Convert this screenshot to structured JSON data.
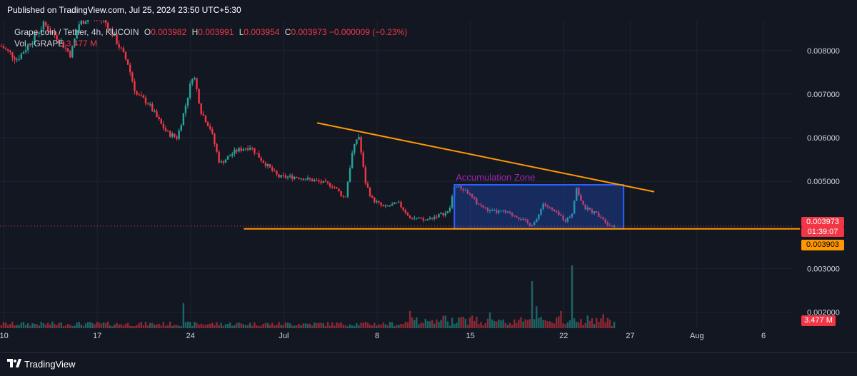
{
  "header": {
    "published": "Published on TradingView.com, Jul 25, 2024 23:50 UTC+5:30"
  },
  "legend": {
    "symbol": "Grape coin / Tether, 4h, KUCOIN",
    "open_label": "O",
    "open": "0.003982",
    "high_label": "H",
    "high": "0.003991",
    "low_label": "L",
    "low": "0.003954",
    "close_label": "C",
    "close": "0.003973",
    "change": "−0.000009 (−0.23%)",
    "vol_label": "Vol · GRAPE",
    "vol_value": "3.477 M"
  },
  "price_tags": {
    "last_price": "0.003973",
    "countdown": "01:39:07",
    "support_level": "0.003903",
    "volume": "3.477 M"
  },
  "footer": {
    "brand": "TradingView"
  },
  "colors": {
    "background": "#131722",
    "up": "#26a69a",
    "down": "#f23645",
    "trendline": "#ff9800",
    "box_fill": "#2962ff",
    "annotation_text": "#9c27b0"
  },
  "chart_data": {
    "type": "candlestick",
    "symbol": "Grape coin / Tether",
    "interval": "4h",
    "exchange": "KUCOIN",
    "ylim": [
      0.0015,
      0.0087
    ],
    "y_ticks": [
      "0.008000",
      "0.007000",
      "0.006000",
      "0.005000",
      "0.003000",
      "0.002000"
    ],
    "y_tick_values": [
      0.008,
      0.007,
      0.006,
      0.005,
      0.003,
      0.002
    ],
    "x_ticks": [
      "10",
      "17",
      "24",
      "Jul",
      "8",
      "15",
      "22",
      "27",
      "Aug",
      "6"
    ],
    "x_tick_days": [
      10,
      17,
      24,
      31,
      38,
      45,
      52,
      57,
      62,
      67
    ],
    "xlim_days": [
      9.7,
      69.3
    ],
    "close_path": [
      [
        9.8,
        0.0081
      ],
      [
        11,
        0.0078
      ],
      [
        12,
        0.0082
      ],
      [
        13,
        0.0086
      ],
      [
        14,
        0.0083
      ],
      [
        15,
        0.0079
      ],
      [
        15.6,
        0.0086
      ],
      [
        16.5,
        0.0088
      ],
      [
        17.5,
        0.0087
      ],
      [
        18.3,
        0.0083
      ],
      [
        19.3,
        0.0077
      ],
      [
        19.9,
        0.007
      ],
      [
        20.8,
        0.0068
      ],
      [
        21.8,
        0.0063
      ],
      [
        22.3,
        0.0061
      ],
      [
        23,
        0.006
      ],
      [
        23.6,
        0.0067
      ],
      [
        24.2,
        0.0075
      ],
      [
        24.8,
        0.0066
      ],
      [
        25.5,
        0.0062
      ],
      [
        26.2,
        0.0054
      ],
      [
        27.4,
        0.0057
      ],
      [
        28.5,
        0.0058
      ],
      [
        29.3,
        0.0055
      ],
      [
        30.6,
        0.0051
      ],
      [
        32,
        0.0051
      ],
      [
        33.5,
        0.005
      ],
      [
        34.7,
        0.0049
      ],
      [
        35.6,
        0.0046
      ],
      [
        36.1,
        0.0056
      ],
      [
        36.6,
        0.0061
      ],
      [
        37.1,
        0.005
      ],
      [
        37.6,
        0.0046
      ],
      [
        38.5,
        0.0044
      ],
      [
        39.6,
        0.0045
      ],
      [
        40.4,
        0.0042
      ],
      [
        41.5,
        0.0041
      ],
      [
        42.4,
        0.0042
      ],
      [
        43.4,
        0.0043
      ],
      [
        43.8,
        0.0049
      ],
      [
        44.6,
        0.0048
      ],
      [
        45.5,
        0.0045
      ],
      [
        46.5,
        0.0043
      ],
      [
        47.5,
        0.0043
      ],
      [
        48.5,
        0.0042
      ],
      [
        49.5,
        0.004
      ],
      [
        50,
        0.0041
      ],
      [
        50.4,
        0.0045
      ],
      [
        51.3,
        0.0043
      ],
      [
        52.2,
        0.0041
      ],
      [
        52.7,
        0.0043
      ],
      [
        52.9,
        0.0049
      ],
      [
        53.5,
        0.0044
      ],
      [
        54.2,
        0.0043
      ],
      [
        54.8,
        0.0042
      ],
      [
        55.4,
        0.004
      ],
      [
        55.8,
        0.003973
      ]
    ],
    "volume": {
      "unit": "M",
      "last": 3.477,
      "spikes": [
        [
          23.4,
          3.2
        ],
        [
          40.5,
          2.2
        ],
        [
          43.0,
          1.6
        ],
        [
          46.5,
          2.0
        ],
        [
          49.7,
          6.0
        ],
        [
          50.0,
          2.8
        ],
        [
          51.8,
          2.2
        ],
        [
          52.7,
          8.0
        ],
        [
          55.0,
          1.8
        ]
      ]
    },
    "annotations": {
      "accumulation_zone_label": "Accumulation Zone",
      "accumulation_zone": {
        "x_days": [
          43.8,
          56.5
        ],
        "y": [
          0.00391,
          0.00492
        ]
      },
      "descending_trendline": {
        "from": [
          33.5,
          0.00634
        ],
        "to": [
          58.8,
          0.00476
        ]
      },
      "support_line": {
        "from": [
          28.0,
          0.00391
        ],
        "to": [
          69.3,
          0.00391
        ],
        "price": 0.003903
      }
    },
    "last_price": 0.003973
  }
}
